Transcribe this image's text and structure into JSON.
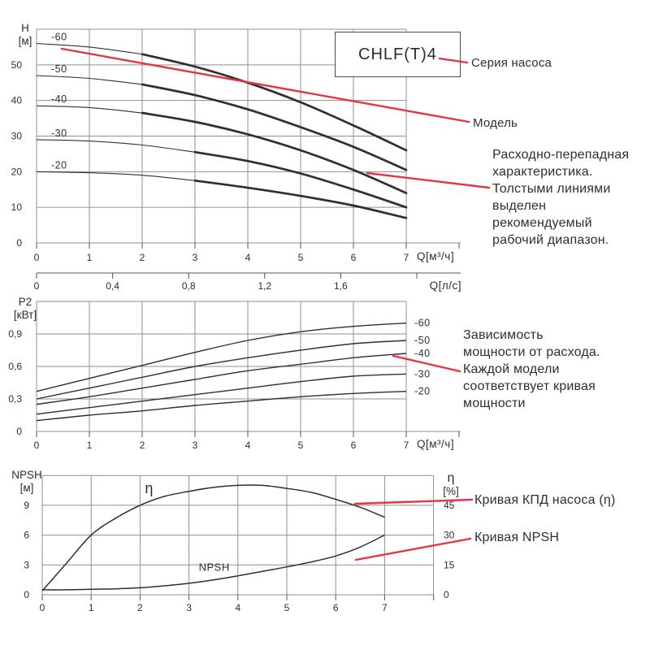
{
  "series_box": {
    "label": "CHLF(T)4"
  },
  "callouts": {
    "series": "Серия насоса",
    "model": "Модель",
    "flow_head_lines": [
      "Расходно-перепадная",
      "характеристика.",
      "Толстыми линиями",
      "выделен",
      "рекомендуемый",
      "рабочий диапазон."
    ],
    "power_lines": [
      "Зависимость",
      "мощности от расхода.",
      "Каждой модели",
      "соответствует кривая",
      "мощности"
    ],
    "efficiency": "Кривая КПД насоса (η)",
    "npsh": "Кривая NPSH"
  },
  "colors": {
    "accent_red": "#e73443",
    "grid": "#8f8f91",
    "tick": "#55555a",
    "text": "#2e2e33",
    "curve": "#2f2f33"
  },
  "chart_data": [
    {
      "id": "head",
      "type": "line",
      "y_axis": {
        "title_lines": [
          "H",
          "[м]"
        ],
        "min": 0,
        "max": 60,
        "grid_step": 10,
        "tick_labels": [
          "0",
          "10",
          "20",
          "30",
          "40",
          "50"
        ]
      },
      "x_axis": {
        "min": 0,
        "max": 7,
        "grid_step": 1,
        "tick_labels": [
          "0",
          "1",
          "2",
          "3",
          "4",
          "5",
          "6",
          "7"
        ],
        "axis_label": "Q[м³/ч]"
      },
      "x_axis_secondary": {
        "unit": "л/с",
        "tick_step": 0.4,
        "tick_labels": [
          "0",
          "0,4",
          "0,8",
          "1,2",
          "1,6"
        ],
        "axis_label": "Q[л/с]"
      },
      "series": [
        {
          "name": "-60",
          "thick_from": 2,
          "points": [
            [
              0,
              56
            ],
            [
              1,
              55
            ],
            [
              2,
              53
            ],
            [
              3,
              49.5
            ],
            [
              4,
              45
            ],
            [
              5,
              39.5
            ],
            [
              6,
              33
            ],
            [
              7,
              26
            ]
          ]
        },
        {
          "name": "-50",
          "thick_from": 2,
          "points": [
            [
              0,
              47
            ],
            [
              1,
              46.2
            ],
            [
              2,
              44.5
            ],
            [
              3,
              41.5
            ],
            [
              4,
              37.5
            ],
            [
              5,
              32.5
            ],
            [
              6,
              27
            ],
            [
              7,
              20.5
            ]
          ]
        },
        {
          "name": "-40",
          "thick_from": 2,
          "points": [
            [
              0,
              38.5
            ],
            [
              1,
              38
            ],
            [
              2,
              36.5
            ],
            [
              3,
              34
            ],
            [
              4,
              30.5
            ],
            [
              5,
              26
            ],
            [
              6,
              20.5
            ],
            [
              7,
              14
            ]
          ]
        },
        {
          "name": "-30",
          "thick_from": 3,
          "points": [
            [
              0,
              29
            ],
            [
              1,
              28.6
            ],
            [
              2,
              27.5
            ],
            [
              3,
              25.5
            ],
            [
              4,
              23
            ],
            [
              5,
              19.5
            ],
            [
              6,
              15
            ],
            [
              7,
              10
            ]
          ]
        },
        {
          "name": "-20",
          "thick_from": 3,
          "points": [
            [
              0,
              20
            ],
            [
              1,
              19.7
            ],
            [
              2,
              19
            ],
            [
              3,
              17.5
            ],
            [
              4,
              15.5
            ],
            [
              5,
              13.2
            ],
            [
              6,
              10.5
            ],
            [
              7,
              7
            ]
          ]
        }
      ]
    },
    {
      "id": "power",
      "type": "line",
      "y_axis": {
        "title_lines": [
          "P2",
          "[кВт]"
        ],
        "min": 0,
        "max": 1.2,
        "grid_step": 0.3,
        "tick_labels": [
          "0",
          "0,3",
          "0,6",
          "0,9"
        ]
      },
      "x_axis": {
        "min": 0,
        "max": 7,
        "grid_step": 1,
        "tick_labels": [
          "0",
          "1",
          "2",
          "3",
          "4",
          "5",
          "6",
          "7"
        ],
        "axis_label": "Q[м³/ч]"
      },
      "series": [
        {
          "name": "-60",
          "points": [
            [
              0,
              0.37
            ],
            [
              1,
              0.49
            ],
            [
              2,
              0.61
            ],
            [
              3,
              0.73
            ],
            [
              4,
              0.84
            ],
            [
              5,
              0.92
            ],
            [
              6,
              0.97
            ],
            [
              7,
              1.0
            ]
          ]
        },
        {
          "name": "-50",
          "points": [
            [
              0,
              0.3
            ],
            [
              1,
              0.4
            ],
            [
              2,
              0.5
            ],
            [
              3,
              0.6
            ],
            [
              4,
              0.68
            ],
            [
              5,
              0.75
            ],
            [
              6,
              0.81
            ],
            [
              7,
              0.84
            ]
          ]
        },
        {
          "name": "-40",
          "points": [
            [
              0,
              0.25
            ],
            [
              1,
              0.32
            ],
            [
              2,
              0.4
            ],
            [
              3,
              0.48
            ],
            [
              4,
              0.56
            ],
            [
              5,
              0.62
            ],
            [
              6,
              0.68
            ],
            [
              7,
              0.72
            ]
          ]
        },
        {
          "name": "-30",
          "points": [
            [
              0,
              0.16
            ],
            [
              1,
              0.22
            ],
            [
              2,
              0.28
            ],
            [
              3,
              0.34
            ],
            [
              4,
              0.4
            ],
            [
              5,
              0.46
            ],
            [
              6,
              0.51
            ],
            [
              7,
              0.53
            ]
          ]
        },
        {
          "name": "-20",
          "points": [
            [
              0,
              0.1
            ],
            [
              1,
              0.15
            ],
            [
              2,
              0.19
            ],
            [
              3,
              0.24
            ],
            [
              4,
              0.28
            ],
            [
              5,
              0.32
            ],
            [
              6,
              0.35
            ],
            [
              7,
              0.37
            ]
          ]
        }
      ]
    },
    {
      "id": "npsh_eff",
      "type": "line",
      "y_axis": {
        "title_lines": [
          "NPSH",
          "[м]"
        ],
        "min": 0,
        "max": 12,
        "grid_step": 3,
        "tick_labels": [
          "0",
          "3",
          "6",
          "9"
        ]
      },
      "y_axis_right": {
        "title_lines": [
          "η",
          "[%]"
        ],
        "min": 0,
        "max": 60,
        "grid_step": 15,
        "tick_labels": [
          "0",
          "15",
          "30",
          "45"
        ]
      },
      "x_axis": {
        "min": 0,
        "max": 8,
        "grid_step": 1,
        "tick_labels": [
          "0",
          "1",
          "2",
          "3",
          "4",
          "5",
          "6",
          "7"
        ],
        "axis_label": ""
      },
      "series": [
        {
          "name": "η",
          "label_at": [
            2.1,
            10.2
          ],
          "points": [
            [
              0,
              0.4
            ],
            [
              0.5,
              3.2
            ],
            [
              1,
              6
            ],
            [
              1.5,
              7.7
            ],
            [
              2,
              9
            ],
            [
              2.5,
              9.9
            ],
            [
              3,
              10.4
            ],
            [
              3.5,
              10.8
            ],
            [
              4,
              11
            ],
            [
              4.5,
              11
            ],
            [
              5,
              10.7
            ],
            [
              5.5,
              10.3
            ],
            [
              6,
              9.6
            ],
            [
              6.5,
              8.8
            ],
            [
              7,
              7.8
            ]
          ]
        },
        {
          "name": "NPSH",
          "label_at": [
            3.2,
            2.4
          ],
          "points": [
            [
              0,
              0.5
            ],
            [
              0.5,
              0.5
            ],
            [
              1,
              0.55
            ],
            [
              1.5,
              0.6
            ],
            [
              2,
              0.7
            ],
            [
              2.5,
              0.9
            ],
            [
              3,
              1.15
            ],
            [
              3.5,
              1.5
            ],
            [
              4,
              1.9
            ],
            [
              4.5,
              2.35
            ],
            [
              5,
              2.8
            ],
            [
              5.5,
              3.3
            ],
            [
              6,
              3.9
            ],
            [
              6.5,
              4.8
            ],
            [
              7,
              6
            ]
          ]
        }
      ]
    }
  ]
}
